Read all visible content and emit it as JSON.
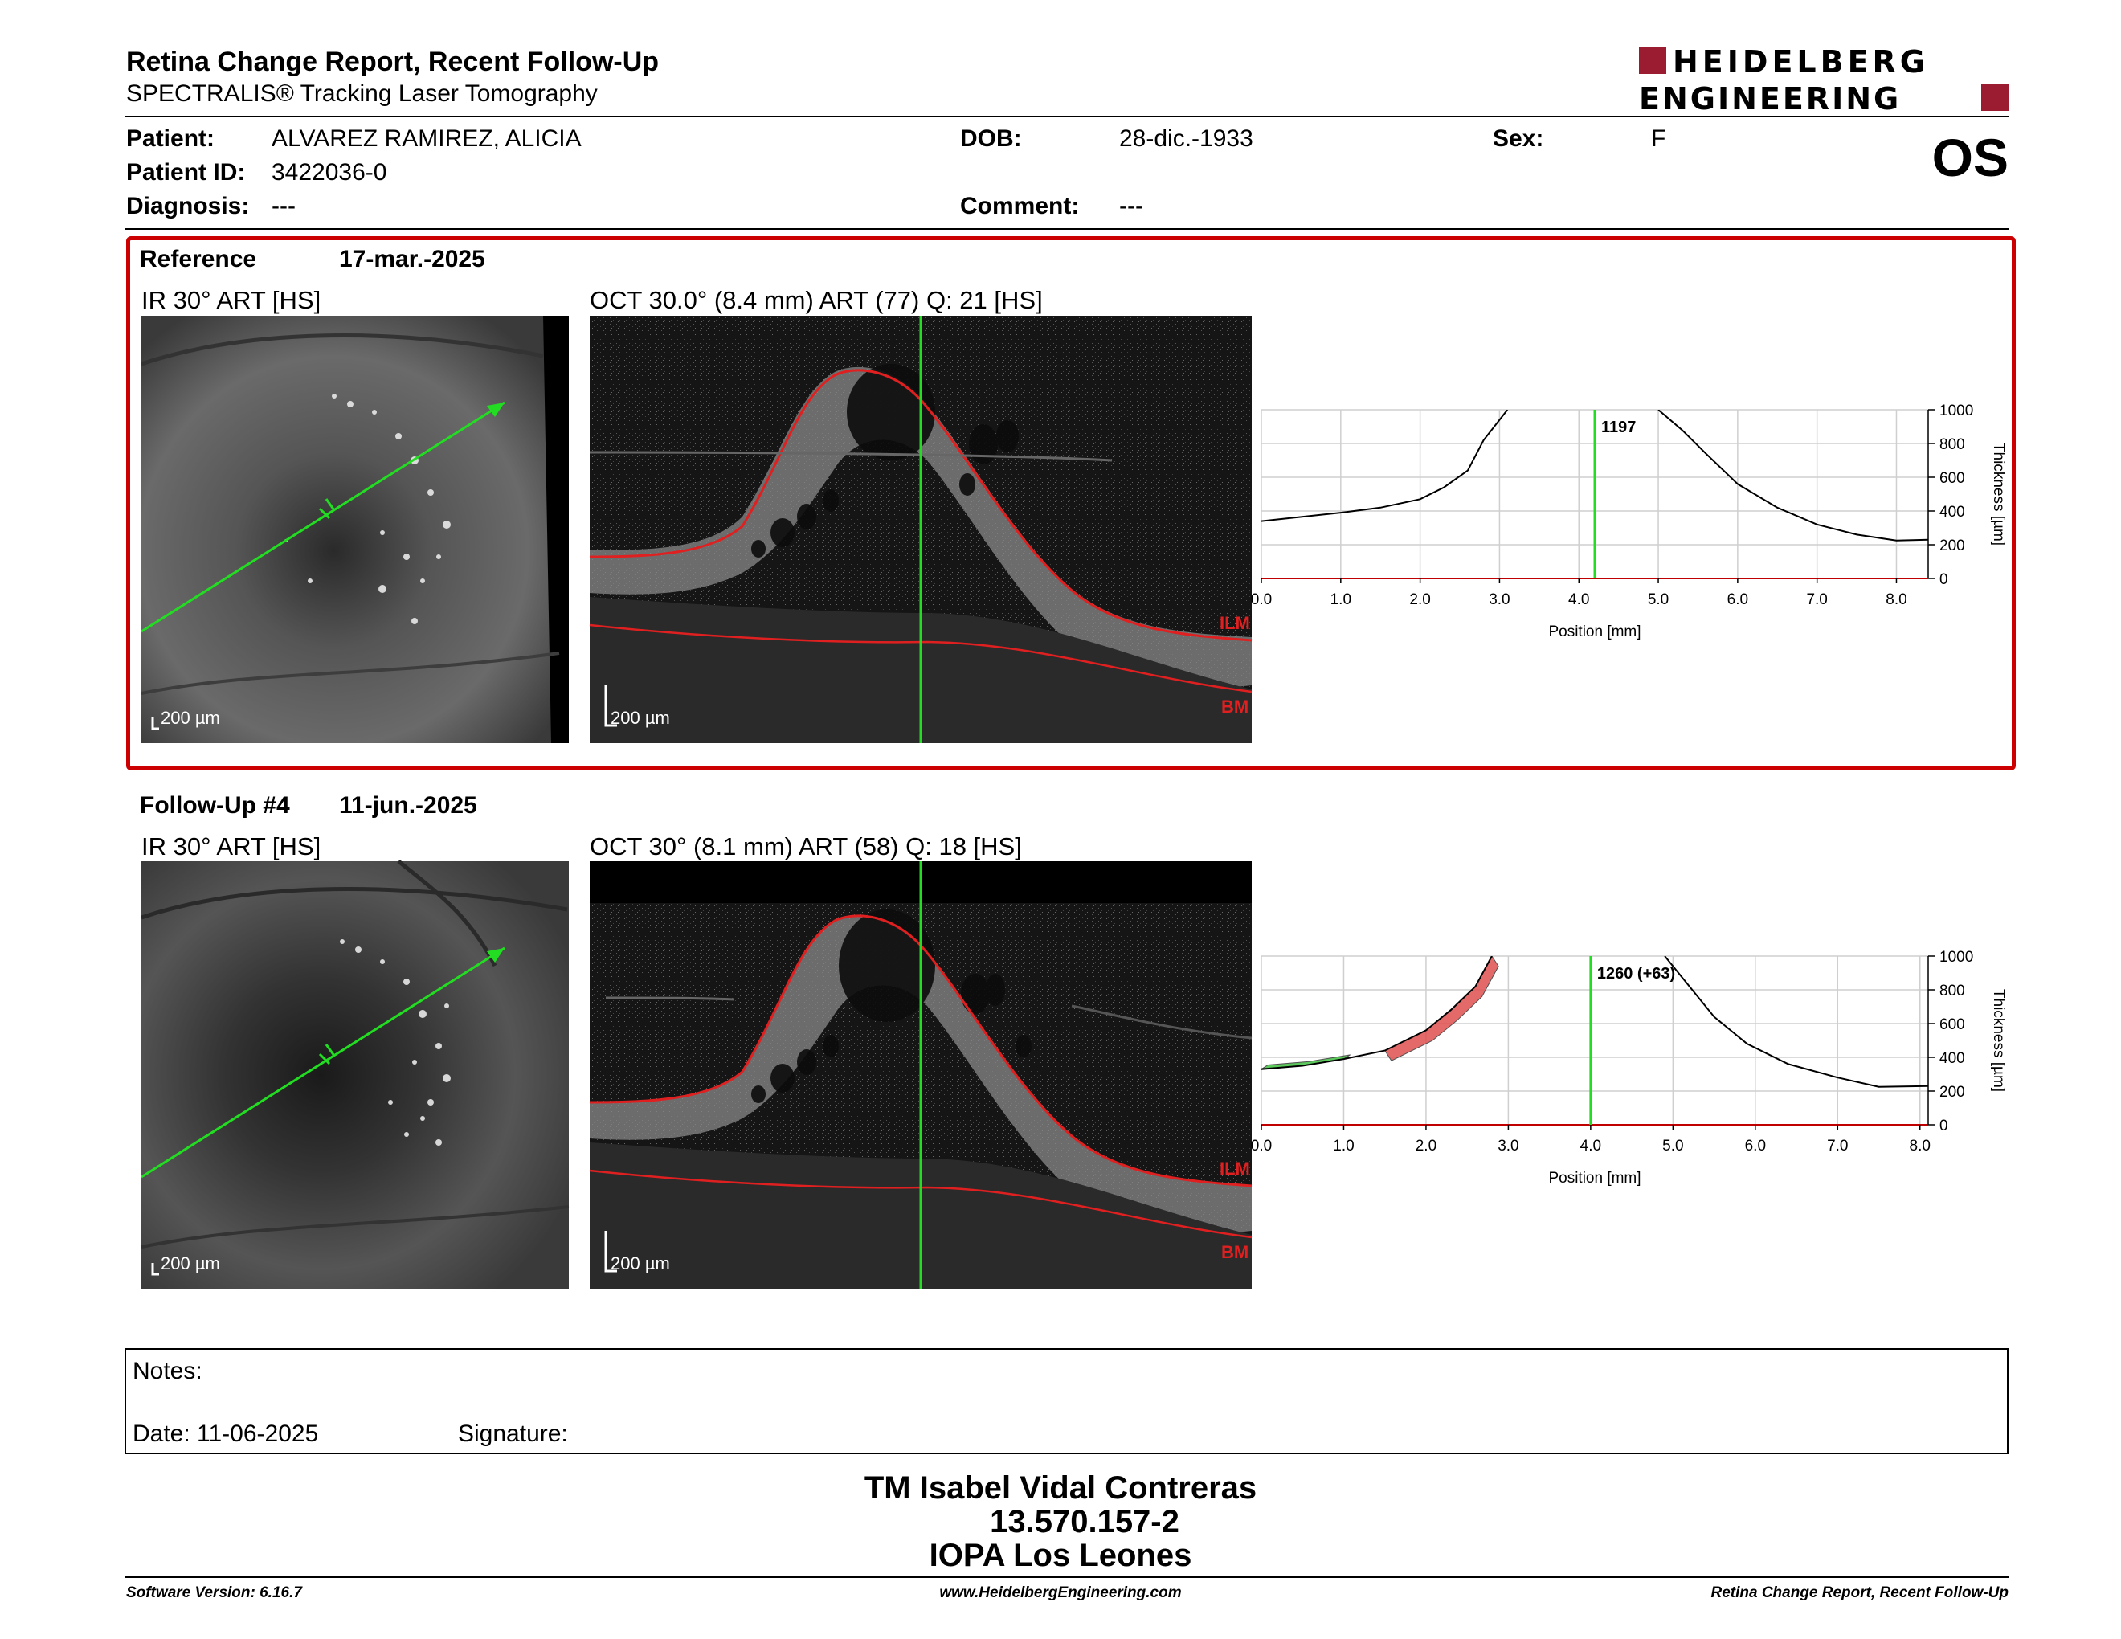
{
  "header": {
    "title": "Retina Change Report, Recent Follow-Up",
    "subtitle": "SPECTRALIS® Tracking Laser Tomography",
    "eye": "OS",
    "logo_line1": "HEIDELBERG",
    "logo_line2": "ENGINEERING"
  },
  "patient": {
    "patient_label": "Patient:",
    "patient_value": "ALVAREZ RAMIREZ, ALICIA",
    "id_label": "Patient ID:",
    "id_value": "3422036-0",
    "diagnosis_label": "Diagnosis:",
    "diagnosis_value": "---",
    "dob_label": "DOB:",
    "dob_value": "28-dic.-1933",
    "comment_label": "Comment:",
    "comment_value": "---",
    "sex_label": "Sex:",
    "sex_value": "F"
  },
  "reference": {
    "label": "Reference",
    "date": "17-mar.-2025",
    "ir_title": "IR 30° ART [HS]",
    "oct_title": "OCT 30.0° (8.4 mm) ART (77) Q: 21 [HS]",
    "scale_ir": "200 µm",
    "scale_oct": "200 µm",
    "ilm": "ILM",
    "bm": "BM"
  },
  "followup": {
    "label": "Follow-Up #4",
    "date": "11-jun.-2025",
    "ir_title": "IR 30° ART [HS]",
    "oct_title": "OCT 30° (8.1 mm) ART (58) Q: 18 [HS]",
    "scale_ir": "200 µm",
    "scale_oct": "200 µm",
    "ilm": "ILM",
    "bm": "BM"
  },
  "chart_data": [
    {
      "type": "line",
      "xlabel": "Position [mm]",
      "ylabel": "Thickness [µm]",
      "xlim": [
        0,
        8.4
      ],
      "ylim": [
        0,
        1000
      ],
      "x_ticks": [
        "0.0",
        "1.0",
        "2.0",
        "3.0",
        "4.0",
        "5.0",
        "6.0",
        "7.0",
        "8.0"
      ],
      "y_ticks": [
        "0",
        "200",
        "400",
        "600",
        "800",
        "1000"
      ],
      "cursor_x": 4.2,
      "cursor_label": "1197",
      "series": [
        {
          "x": [
            0.0,
            0.5,
            1.0,
            1.5,
            2.0,
            2.3,
            2.6,
            2.8,
            3.0,
            3.1
          ],
          "y": [
            340,
            365,
            390,
            420,
            470,
            540,
            640,
            820,
            940,
            1000
          ]
        },
        {
          "x": [
            5.0,
            5.3,
            5.6,
            6.0,
            6.5,
            7.0,
            7.5,
            8.0,
            8.4
          ],
          "y": [
            1000,
            880,
            740,
            560,
            420,
            320,
            260,
            225,
            230
          ]
        }
      ]
    },
    {
      "type": "line",
      "xlabel": "Position [mm]",
      "ylabel": "Thickness [µm]",
      "xlim": [
        0,
        8.1
      ],
      "ylim": [
        0,
        1000
      ],
      "x_ticks": [
        "0.0",
        "1.0",
        "2.0",
        "3.0",
        "4.0",
        "5.0",
        "6.0",
        "7.0",
        "8.0"
      ],
      "y_ticks": [
        "0",
        "200",
        "400",
        "600",
        "800",
        "1000"
      ],
      "cursor_x": 4.0,
      "cursor_label": "1260 (+63)",
      "series": [
        {
          "x": [
            0.0,
            0.5,
            1.0,
            1.5,
            2.0,
            2.3,
            2.6,
            2.8
          ],
          "y": [
            330,
            350,
            390,
            440,
            560,
            680,
            820,
            1000
          ]
        },
        {
          "x": [
            4.9,
            5.2,
            5.5,
            5.9,
            6.4,
            7.0,
            7.5,
            8.1
          ],
          "y": [
            1000,
            820,
            640,
            480,
            360,
            280,
            225,
            230
          ]
        }
      ],
      "diff_regions": [
        {
          "color": "#e05050",
          "x_from": 1.5,
          "x_to": 2.8
        },
        {
          "color": "#40c040",
          "x_from": 0.0,
          "x_to": 1.0
        }
      ]
    }
  ],
  "notes": {
    "notes_label": "Notes:",
    "date_label": "Date: 11-06-2025",
    "signature_label": "Signature:"
  },
  "footer": {
    "name": "TM Isabel Vidal Contreras",
    "rut": "13.570.157-2",
    "clinic": "IOPA Los Leones",
    "software": "Software Version: 6.16.7",
    "website": "www.HeidelbergEngineering.com",
    "report": "Retina Change Report, Recent Follow-Up"
  },
  "colors": {
    "accent_red": "#c00000",
    "logo_red": "#9b1b30",
    "scan_line": "#22dd22"
  }
}
